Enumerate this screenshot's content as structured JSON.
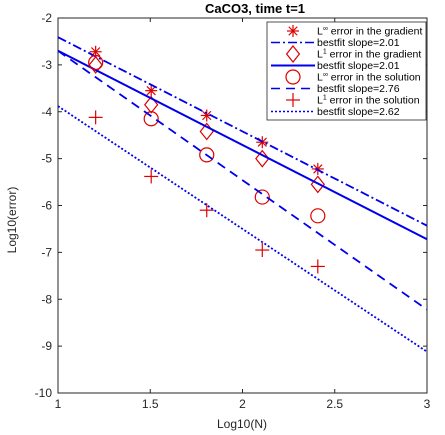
{
  "chart_data": {
    "type": "line",
    "title": "CaCO3,   time t=1",
    "xlabel": "Log10(N)",
    "ylabel": "Log10(error)",
    "xlim": [
      1,
      3
    ],
    "ylim": [
      -10,
      -2
    ],
    "xticks": [
      "1",
      "1.5",
      "2",
      "2.5",
      "3"
    ],
    "yticks": [
      "-2",
      "-3",
      "-4",
      "-5",
      "-6",
      "-7",
      "-8",
      "-9",
      "-10"
    ],
    "grid": false,
    "legend_position": "top-right",
    "colors": {
      "series": "#0000ee",
      "markers": "#dd0000",
      "axis": "#262626"
    },
    "x": [
      1.2041,
      1.5051,
      1.8062,
      2.1072,
      2.4082
    ],
    "series": [
      {
        "name_main": "L",
        "name_sup": "∞",
        "name_rest": " error in the gradient",
        "marker": "asterisk",
        "values": [
          -2.72,
          -3.55,
          -4.08,
          -4.65,
          -5.22
        ]
      },
      {
        "name": "bestfit slope=2.01",
        "line": "dashdot",
        "fit_slope": 2.01,
        "fit_intercept": -0.4
      },
      {
        "name_main": "L",
        "name_sup": "1",
        "name_rest": " error in the gradient",
        "marker": "diamond",
        "values": [
          -3.0,
          -3.85,
          -4.42,
          -5.0,
          -5.55
        ]
      },
      {
        "name": "bestfit slope=2.01",
        "line": "solid",
        "fit_slope": 2.01,
        "fit_intercept": -0.69
      },
      {
        "name_main": "L",
        "name_sup": "∞",
        "name_rest": " error in the solution",
        "marker": "circle",
        "values": [
          -2.95,
          -4.15,
          -4.92,
          -5.82,
          -6.22
        ]
      },
      {
        "name": "bestfit slope=2.76",
        "line": "dashed",
        "fit_slope": 2.76,
        "fit_intercept": 0.06
      },
      {
        "name_main": "L",
        "name_sup": "1",
        "name_rest": " error in the solution",
        "marker": "plus",
        "values": [
          -4.12,
          -5.38,
          -6.1,
          -6.95,
          -7.3
        ]
      },
      {
        "name": "bestfit slope=2.62",
        "line": "dotted",
        "fit_slope": 2.62,
        "fit_intercept": -1.26
      }
    ]
  }
}
